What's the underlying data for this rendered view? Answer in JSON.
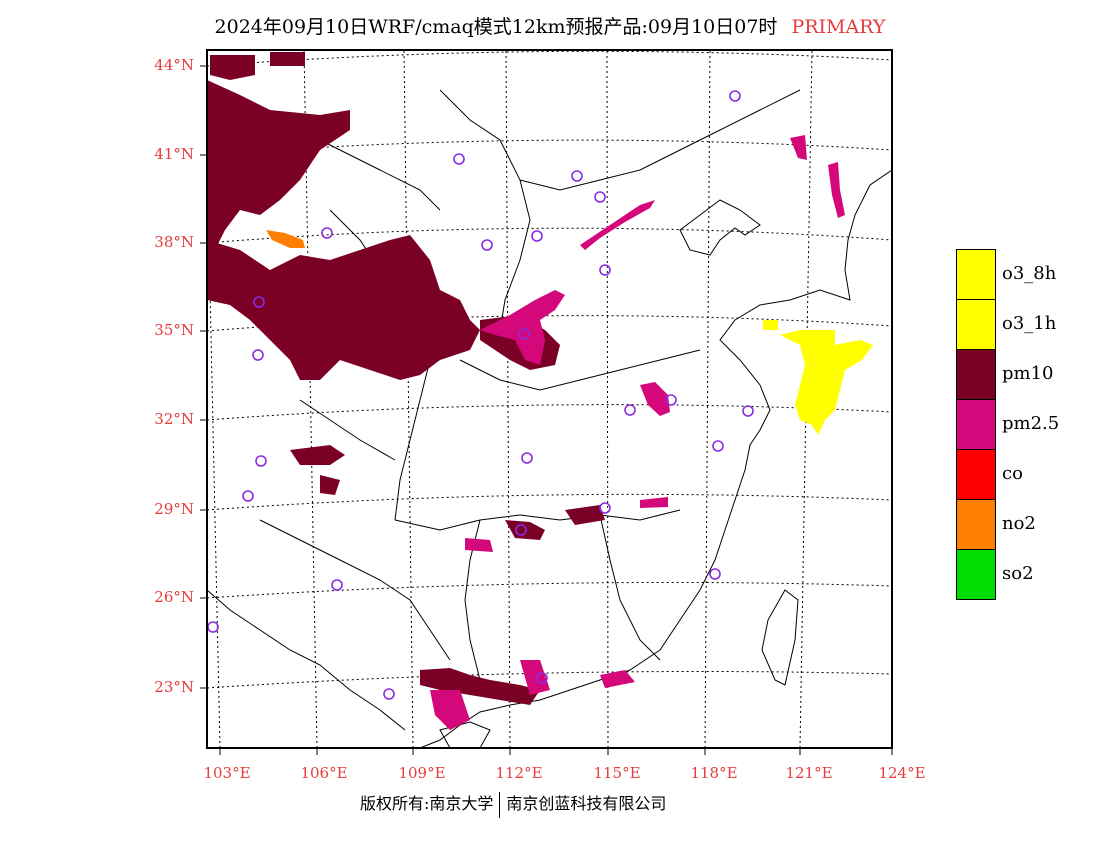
{
  "header": {
    "title": "2024年09月10日WRF/cmaq模式12km预报产品:09月10日07时",
    "tag": "PRIMARY"
  },
  "axes": {
    "lat_labels": [
      "44°N",
      "41°N",
      "38°N",
      "35°N",
      "32°N",
      "29°N",
      "26°N",
      "23°N"
    ],
    "lon_labels": [
      "103°E",
      "106°E",
      "109°E",
      "112°E",
      "115°E",
      "118°E",
      "121°E",
      "124°E"
    ]
  },
  "legend": {
    "items": [
      {
        "label": "o3_8h",
        "color": "#ffff00"
      },
      {
        "label": "o3_1h",
        "color": "#ffff00"
      },
      {
        "label": "pm10",
        "color": "#7b0026"
      },
      {
        "label": "pm2.5",
        "color": "#d4087a"
      },
      {
        "label": "co",
        "color": "#ff0000"
      },
      {
        "label": "no2",
        "color": "#ff7f00"
      },
      {
        "label": "so2",
        "color": "#00dd00"
      }
    ]
  },
  "footer": {
    "left": "版权所有:南京大学",
    "right": "南京创蓝科技有限公司"
  },
  "colors": {
    "pm10": "#7b0026",
    "pm25": "#d4087a",
    "o3": "#ffff00",
    "no2": "#ff7f00",
    "station": "#8a2be2",
    "axis_label": "#e83b3b"
  }
}
